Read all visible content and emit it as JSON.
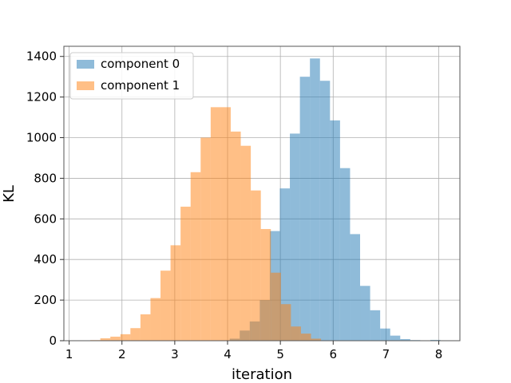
{
  "chart_data": {
    "type": "bar",
    "subtype": "histogram",
    "title": "",
    "xlabel": "iteration",
    "ylabel": "KL",
    "xlim": [
      0.9,
      8.4
    ],
    "ylim": [
      0,
      1450
    ],
    "xticks": [
      1,
      2,
      3,
      4,
      5,
      6,
      7,
      8
    ],
    "yticks": [
      0,
      200,
      400,
      600,
      800,
      1000,
      1200,
      1400
    ],
    "grid": true,
    "legend_position": "top-left",
    "bin_width": 0.19,
    "series": [
      {
        "name": "component 0",
        "color": "#1f77b4",
        "alpha": 0.5,
        "bins": [
          [
            4.04,
            10
          ],
          [
            4.23,
            50
          ],
          [
            4.42,
            95
          ],
          [
            4.61,
            200
          ],
          [
            4.8,
            540
          ],
          [
            4.99,
            750
          ],
          [
            5.18,
            1020
          ],
          [
            5.37,
            1300
          ],
          [
            5.56,
            1390
          ],
          [
            5.75,
            1280
          ],
          [
            5.94,
            1085
          ],
          [
            6.13,
            850
          ],
          [
            6.32,
            525
          ],
          [
            6.51,
            270
          ],
          [
            6.7,
            150
          ],
          [
            6.89,
            60
          ],
          [
            7.08,
            25
          ],
          [
            7.27,
            8
          ],
          [
            7.46,
            3
          ],
          [
            7.65,
            1
          ],
          [
            7.84,
            4
          ]
        ]
      },
      {
        "name": "component 1",
        "color": "#ff7f0e",
        "alpha": 0.5,
        "bins": [
          [
            1.4,
            3
          ],
          [
            1.59,
            12
          ],
          [
            1.78,
            20
          ],
          [
            1.97,
            32
          ],
          [
            2.16,
            62
          ],
          [
            2.35,
            130
          ],
          [
            2.54,
            210
          ],
          [
            2.73,
            345
          ],
          [
            2.92,
            470
          ],
          [
            3.11,
            660
          ],
          [
            3.3,
            830
          ],
          [
            3.49,
            1000
          ],
          [
            3.68,
            1150
          ],
          [
            3.87,
            1150
          ],
          [
            4.06,
            1030
          ],
          [
            4.25,
            960
          ],
          [
            4.44,
            740
          ],
          [
            4.63,
            550
          ],
          [
            4.82,
            335
          ],
          [
            5.01,
            180
          ],
          [
            5.2,
            70
          ],
          [
            5.39,
            35
          ],
          [
            5.58,
            10
          ],
          [
            5.77,
            2
          ]
        ]
      }
    ]
  }
}
